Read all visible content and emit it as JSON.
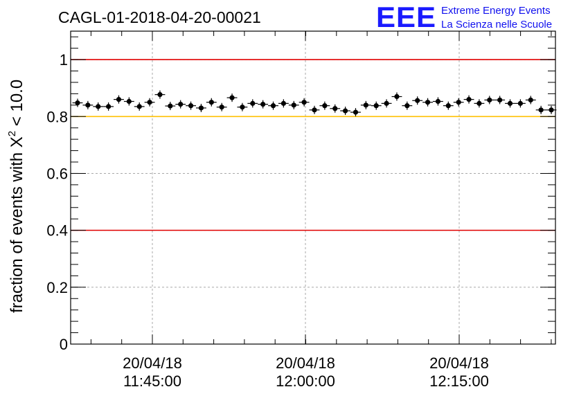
{
  "header": {
    "run_title": "CAGL-01-2018-04-20-00021"
  },
  "logo": {
    "letters": "EEE",
    "line1": "Extreme Energy Events",
    "line2": "La Scienza nelle Scuole"
  },
  "chart_data": {
    "type": "scatter",
    "title": "CAGL-01-2018-04-20-00021",
    "ylabel": {
      "prefix": "fraction of events with ",
      "symbol": "X",
      "superscript": "2",
      "suffix": " < 10.0"
    },
    "ylim": [
      0,
      1.1
    ],
    "y_ticks": [
      {
        "value": 0,
        "label": "0"
      },
      {
        "value": 0.2,
        "label": "0.2"
      },
      {
        "value": 0.4,
        "label": "0.4"
      },
      {
        "value": 0.6,
        "label": "0.6"
      },
      {
        "value": 0.8,
        "label": "0.8"
      },
      {
        "value": 1.0,
        "label": "1"
      }
    ],
    "x_ticks": [
      {
        "date": "20/04/18",
        "time": "11:45:00"
      },
      {
        "date": "20/04/18",
        "time": "12:00:00"
      },
      {
        "date": "20/04/18",
        "time": "12:15:00"
      }
    ],
    "reference_lines": [
      {
        "value": 1.0,
        "color": "#e00000"
      },
      {
        "value": 0.8,
        "color": "#ffc000"
      },
      {
        "value": 0.4,
        "color": "#e00000"
      }
    ],
    "grid": true,
    "marker_color": "#000000",
    "values": [
      0.848,
      0.84,
      0.835,
      0.835,
      0.86,
      0.853,
      0.835,
      0.85,
      0.877,
      0.837,
      0.843,
      0.838,
      0.83,
      0.85,
      0.833,
      0.866,
      0.833,
      0.846,
      0.843,
      0.838,
      0.846,
      0.84,
      0.85,
      0.823,
      0.838,
      0.828,
      0.82,
      0.815,
      0.84,
      0.838,
      0.846,
      0.87,
      0.838,
      0.856,
      0.85,
      0.853,
      0.838,
      0.85,
      0.86,
      0.846,
      0.858,
      0.858,
      0.846,
      0.846,
      0.858,
      0.823,
      0.823
    ]
  }
}
